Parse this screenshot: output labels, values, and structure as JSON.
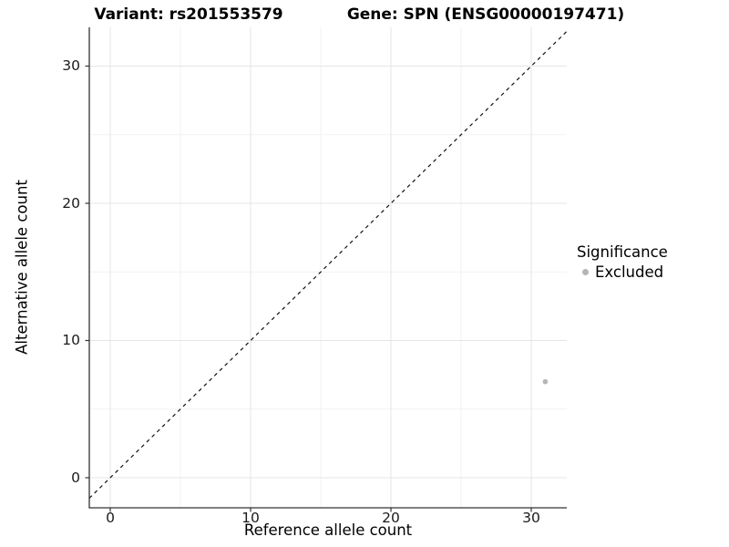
{
  "title": {
    "variant": "Variant: rs201553579",
    "gene": "Gene: SPN (ENSG00000197471)"
  },
  "axes": {
    "x": {
      "label": "Reference allele count",
      "ticks": [
        "0",
        "10",
        "20",
        "30"
      ]
    },
    "y": {
      "label": "Alternative allele count",
      "ticks": [
        "30",
        "20",
        "10",
        "0"
      ]
    }
  },
  "legend": {
    "title": "Significance",
    "items": [
      {
        "label": "Excluded",
        "color": "#b5b5b5"
      }
    ]
  },
  "chart_data": {
    "type": "scatter",
    "title": "Variant: rs201553579 | Gene: SPN (ENSG00000197471)",
    "xlabel": "Reference allele count",
    "ylabel": "Alternative allele count",
    "xlim": [
      -1.5,
      32.5
    ],
    "ylim": [
      -2.2,
      32.8
    ],
    "xticks": [
      0,
      10,
      20,
      30
    ],
    "yticks": [
      0,
      10,
      20,
      30
    ],
    "minor_ticks": [
      5,
      15,
      25
    ],
    "grid": true,
    "legend_position": "right",
    "series": [
      {
        "name": "Excluded",
        "color": "#b5b5b5",
        "points": [
          {
            "x": 31,
            "y": 7
          }
        ]
      }
    ],
    "reference_line": {
      "type": "identity y=x",
      "style": "dashed",
      "color": "#111111"
    }
  }
}
